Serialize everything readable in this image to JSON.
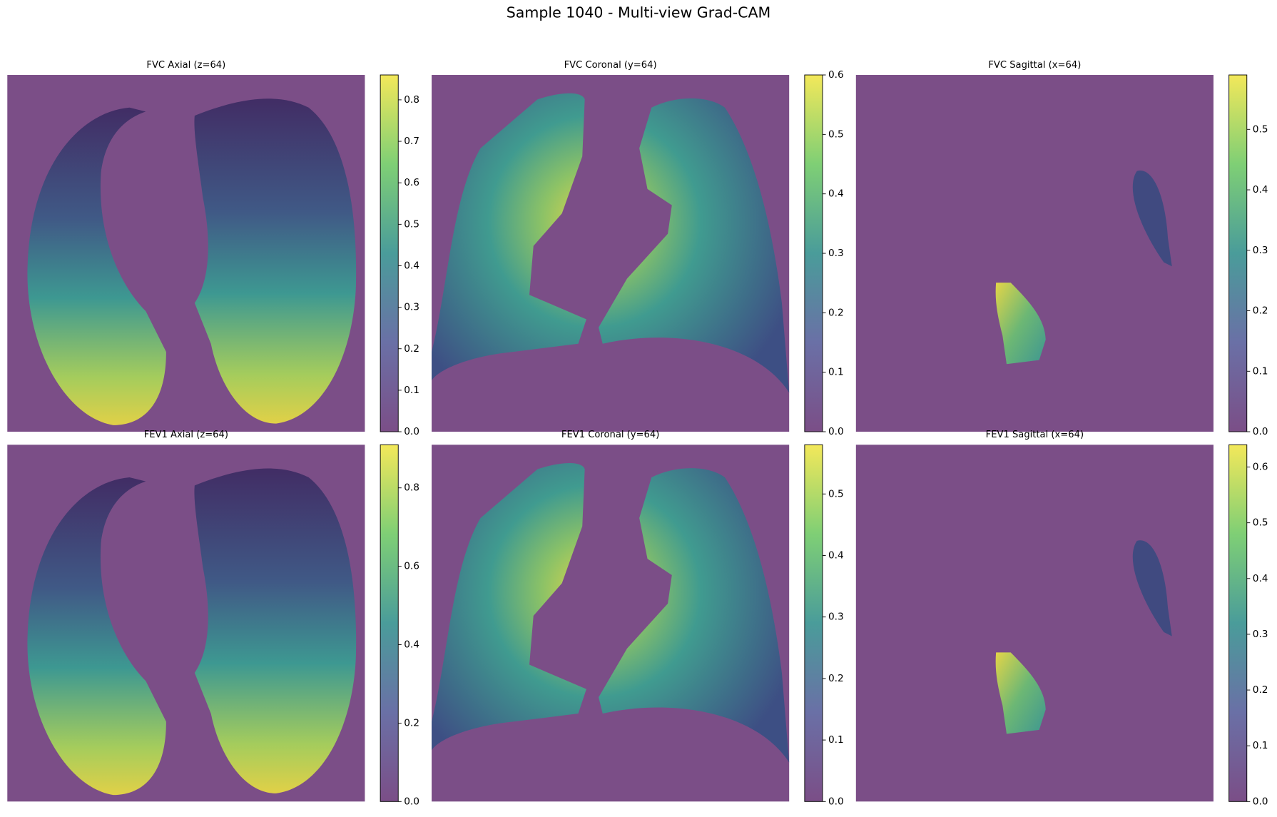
{
  "title": "Sample 1040 - Multi-view Grad-CAM",
  "chart_data": [
    {
      "type": "heatmap",
      "title": "FVC Axial (z=64)",
      "ylim": [
        0,
        0.86
      ],
      "yticks": [
        {
          "value": 0,
          "label": "0.0"
        },
        0.1,
        0.2,
        0.3,
        0.4,
        0.5,
        0.6,
        0.7,
        0.8
      ]
    },
    {
      "type": "heatmap",
      "title": "FVC Coronal (y=64)",
      "ylim": [
        0,
        0.6
      ],
      "yticks": [
        {
          "value": 0,
          "label": "0.0"
        },
        0.1,
        0.2,
        0.3,
        0.4,
        0.5,
        0.6
      ]
    },
    {
      "type": "heatmap",
      "title": "FVC Sagittal (x=64)",
      "ylim": [
        0,
        0.59
      ],
      "yticks": [
        {
          "value": 0,
          "label": "0.0"
        },
        0.1,
        0.2,
        0.3,
        0.4,
        0.5
      ]
    },
    {
      "type": "heatmap",
      "title": "FEV1 Axial (z=64)",
      "ylim": [
        0,
        0.91
      ],
      "yticks": [
        {
          "value": 0,
          "label": "0.0"
        },
        0.2,
        0.4,
        0.6,
        0.8
      ]
    },
    {
      "type": "heatmap",
      "title": "FEV1 Coronal (y=64)",
      "ylim": [
        0,
        0.58
      ],
      "yticks": [
        {
          "value": 0,
          "label": "0.0"
        },
        0.1,
        0.2,
        0.3,
        0.4,
        0.5
      ]
    },
    {
      "type": "heatmap",
      "title": "FEV1 Sagittal (x=64)",
      "ylim": [
        0,
        0.64
      ],
      "yticks": [
        {
          "value": 0,
          "label": "0.0"
        },
        0.1,
        0.2,
        0.3,
        0.4,
        0.5,
        0.6
      ]
    }
  ]
}
